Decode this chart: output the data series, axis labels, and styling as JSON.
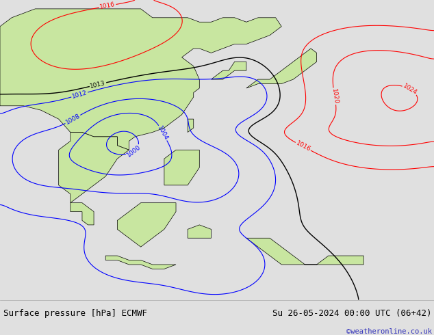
{
  "title_left": "Surface pressure [hPa] ECMWF",
  "title_right": "Su 26-05-2024 00:00 UTC (06+42)",
  "credit": "©weatheronline.co.uk",
  "ocean_color": "#c8d8e8",
  "land_color": "#c8e6a0",
  "fig_width": 6.34,
  "fig_height": 4.9,
  "dpi": 100,
  "bottom_bar_color": "#e0e0e0",
  "title_fontsize": 9.0,
  "credit_fontsize": 7.5,
  "credit_color": "#3333bb",
  "lon_min": 88,
  "lon_max": 162,
  "lat_min": -16,
  "lat_max": 52
}
